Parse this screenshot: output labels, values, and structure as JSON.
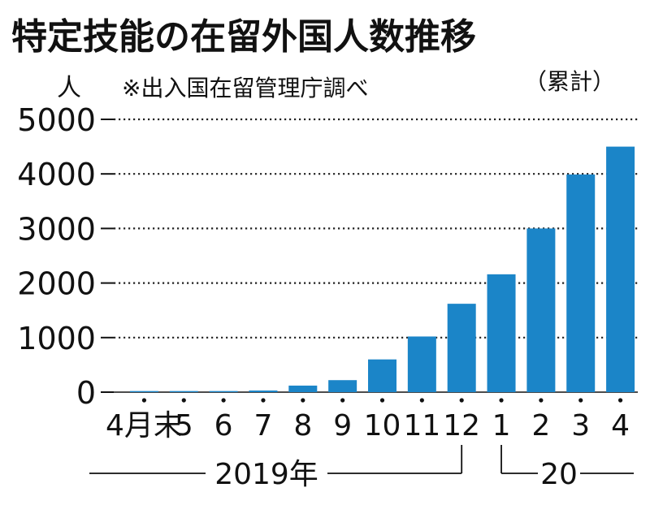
{
  "chart_data": {
    "type": "bar",
    "title": "特定技能の在留外国人数推移",
    "unit_label": "人",
    "source_note": "※出入国在留管理庁調べ",
    "cumulative_note": "（累計）",
    "categories": [
      "4月末",
      "5",
      "6",
      "7",
      "8",
      "9",
      "10",
      "11",
      "12",
      "1",
      "2",
      "3",
      "4"
    ],
    "values": [
      20,
      20,
      20,
      30,
      120,
      220,
      600,
      1020,
      1620,
      2160,
      3000,
      3990,
      4500
    ],
    "ylim": [
      0,
      5000
    ],
    "yticks": [
      "0",
      "1000",
      "2000",
      "3000",
      "4000",
      "5000"
    ],
    "grid": true,
    "bar_color": "#1b85c8",
    "year_groups": [
      {
        "label": "2019年",
        "from": 0,
        "to": 8
      },
      {
        "label": "20",
        "from": 9,
        "to": 12
      }
    ]
  }
}
